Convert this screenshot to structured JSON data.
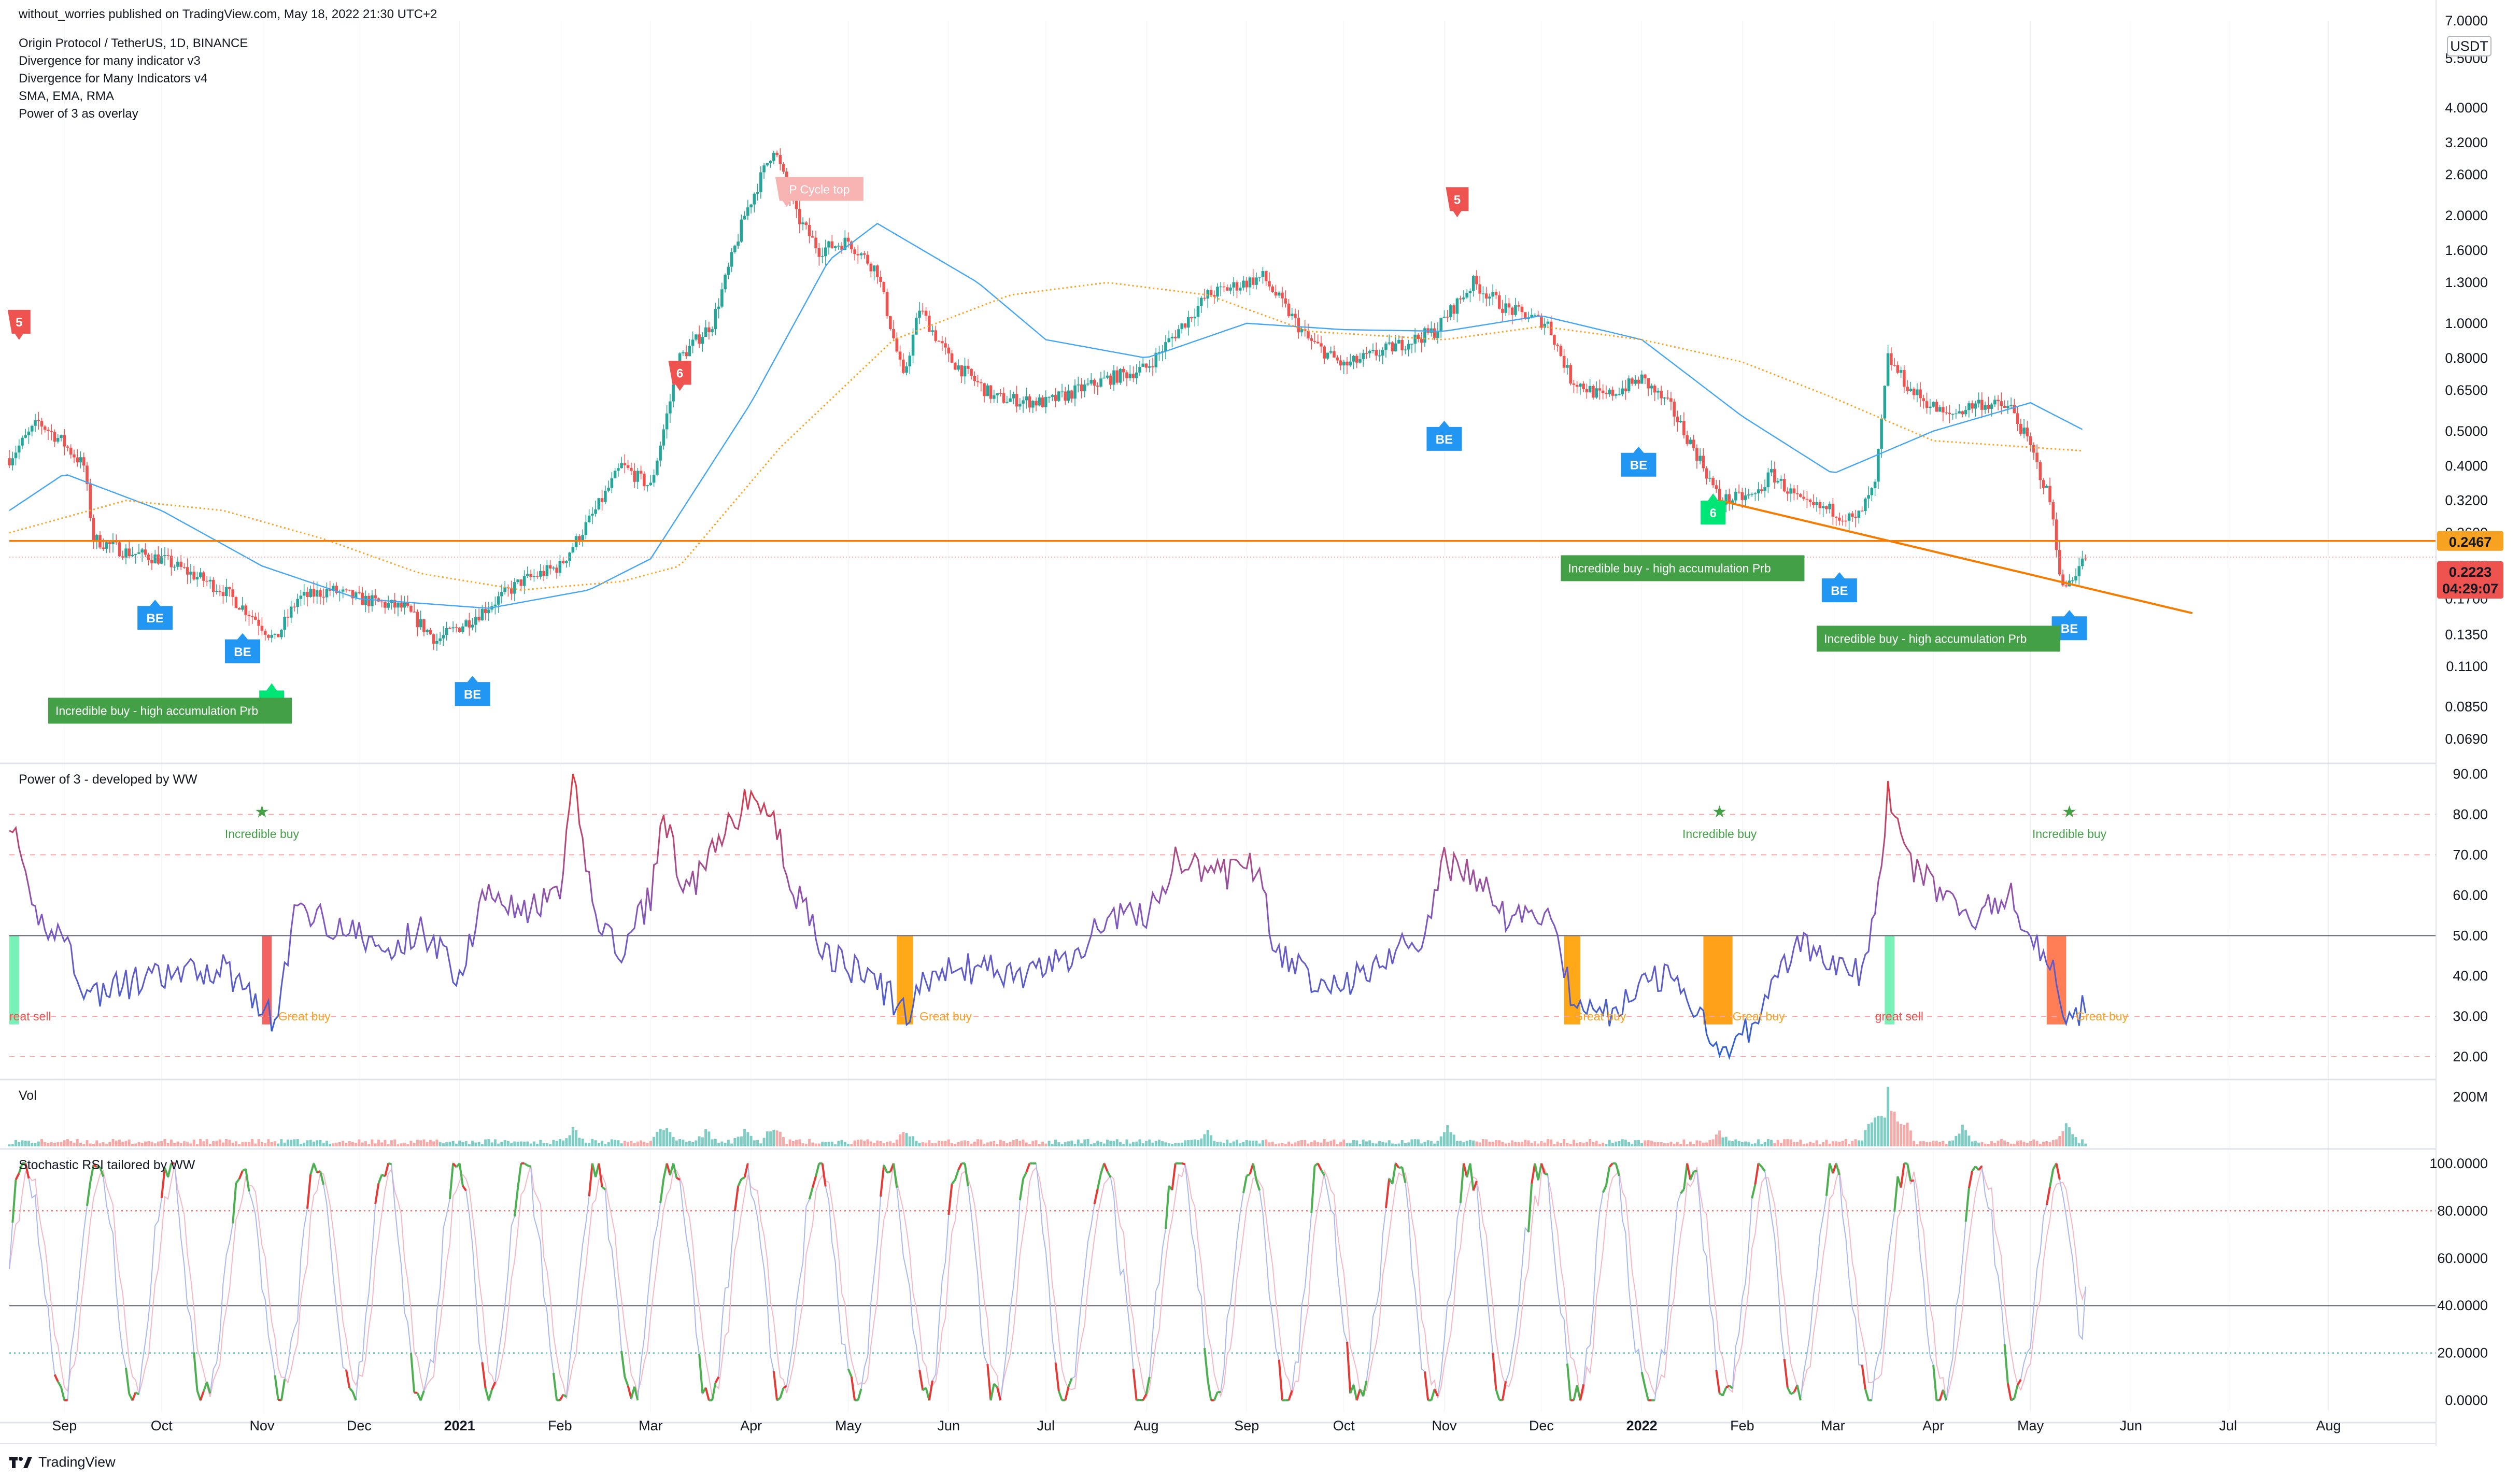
{
  "header": {
    "publisher": "without_worries published on TradingView.com, May 18, 2022 21:30 UTC+2",
    "symbol": "Origin Protocol / TetherUS, 1D, BINANCE",
    "indicators": [
      "Divergence for many indicator v3",
      "Divergence for Many Indicators v4",
      "SMA, EMA, RMA",
      "Power of 3 as overlay"
    ]
  },
  "footer": {
    "brand": "TradingView"
  },
  "colors": {
    "up": "#26a69a",
    "down": "#ef5350",
    "sma": "#42a5f5",
    "ema": "#f7a221",
    "support": "#f57c00",
    "signal_green": "#43a047",
    "be_blue": "#2196f3",
    "sell_red": "#ef5350"
  },
  "chart_data": [
    {
      "pane": "price",
      "type": "candlestick",
      "scale": "log",
      "quote_unit": "USDT",
      "ylim": [
        0.06,
        7.0
      ],
      "y_ticks": [
        "7.0000",
        "5.5000",
        "4.0000",
        "3.2000",
        "2.6000",
        "2.0000",
        "1.6000",
        "1.3000",
        "1.0000",
        "0.8000",
        "0.6500",
        "0.5000",
        "0.4000",
        "0.3200",
        "0.2600",
        "0.2100",
        "0.1700",
        "0.1350",
        "0.1100",
        "0.0850",
        "0.0690"
      ],
      "x_labels": [
        "Sep",
        "Oct",
        "Nov",
        "Dec",
        "2021",
        "Feb",
        "Mar",
        "Apr",
        "May",
        "Jun",
        "Jul",
        "Aug",
        "Sep",
        "Oct",
        "Nov",
        "Dec",
        "2022",
        "Feb",
        "Mar",
        "Apr",
        "May",
        "Jun",
        "Jul",
        "Aug"
      ],
      "x_range": [
        "2020-08-15",
        "2022-08-31"
      ],
      "close_anchors": [
        [
          "2020-08-15",
          0.42
        ],
        [
          "2020-08-24",
          0.53
        ],
        [
          "2020-08-31",
          0.47
        ],
        [
          "2020-09-07",
          0.4
        ],
        [
          "2020-09-10",
          0.25
        ],
        [
          "2020-09-20",
          0.23
        ],
        [
          "2020-10-01",
          0.22
        ],
        [
          "2020-10-10",
          0.2
        ],
        [
          "2020-10-20",
          0.18
        ],
        [
          "2020-10-30",
          0.15
        ],
        [
          "2020-11-05",
          0.13
        ],
        [
          "2020-11-12",
          0.17
        ],
        [
          "2020-11-22",
          0.18
        ],
        [
          "2020-12-01",
          0.17
        ],
        [
          "2020-12-15",
          0.16
        ],
        [
          "2020-12-25",
          0.13
        ],
        [
          "2021-01-05",
          0.15
        ],
        [
          "2021-01-20",
          0.19
        ],
        [
          "2021-02-01",
          0.21
        ],
        [
          "2021-02-12",
          0.3
        ],
        [
          "2021-02-20",
          0.4
        ],
        [
          "2021-03-01",
          0.35
        ],
        [
          "2021-03-10",
          0.8
        ],
        [
          "2021-03-20",
          1.0
        ],
        [
          "2021-03-30",
          2.0
        ],
        [
          "2021-04-08",
          3.1
        ],
        [
          "2021-04-15",
          2.0
        ],
        [
          "2021-04-22",
          1.6
        ],
        [
          "2021-05-01",
          1.7
        ],
        [
          "2021-05-10",
          1.4
        ],
        [
          "2021-05-18",
          0.7
        ],
        [
          "2021-05-23",
          1.1
        ],
        [
          "2021-06-01",
          0.8
        ],
        [
          "2021-06-15",
          0.62
        ],
        [
          "2021-07-01",
          0.6
        ],
        [
          "2021-07-20",
          0.7
        ],
        [
          "2021-08-01",
          0.75
        ],
        [
          "2021-08-20",
          1.2
        ],
        [
          "2021-09-06",
          1.35
        ],
        [
          "2021-09-20",
          0.9
        ],
        [
          "2021-10-01",
          0.76
        ],
        [
          "2021-10-15",
          0.85
        ],
        [
          "2021-10-29",
          0.95
        ],
        [
          "2021-11-10",
          1.3
        ],
        [
          "2021-11-20",
          1.1
        ],
        [
          "2021-12-03",
          1.0
        ],
        [
          "2021-12-10",
          0.7
        ],
        [
          "2021-12-20",
          0.62
        ],
        [
          "2022-01-01",
          0.7
        ],
        [
          "2022-01-10",
          0.58
        ],
        [
          "2022-01-20",
          0.4
        ],
        [
          "2022-01-25",
          0.32
        ],
        [
          "2022-02-05",
          0.33
        ],
        [
          "2022-02-10",
          0.38
        ],
        [
          "2022-02-20",
          0.31
        ],
        [
          "2022-03-01",
          0.3
        ],
        [
          "2022-03-08",
          0.28
        ],
        [
          "2022-03-14",
          0.35
        ],
        [
          "2022-03-18",
          0.8
        ],
        [
          "2022-03-25",
          0.65
        ],
        [
          "2022-04-05",
          0.55
        ],
        [
          "2022-04-15",
          0.6
        ],
        [
          "2022-04-25",
          0.58
        ],
        [
          "2022-05-01",
          0.45
        ],
        [
          "2022-05-07",
          0.32
        ],
        [
          "2022-05-11",
          0.18
        ],
        [
          "2022-05-18",
          0.2223
        ]
      ],
      "sma_anchors": [
        [
          "2020-08-15",
          0.3
        ],
        [
          "2020-09-01",
          0.38
        ],
        [
          "2020-10-01",
          0.3
        ],
        [
          "2020-11-01",
          0.21
        ],
        [
          "2020-12-01",
          0.17
        ],
        [
          "2021-01-10",
          0.16
        ],
        [
          "2021-02-10",
          0.18
        ],
        [
          "2021-03-01",
          0.22
        ],
        [
          "2021-04-01",
          0.6
        ],
        [
          "2021-04-25",
          1.5
        ],
        [
          "2021-05-10",
          1.9
        ],
        [
          "2021-06-10",
          1.3
        ],
        [
          "2021-07-01",
          0.9
        ],
        [
          "2021-08-01",
          0.8
        ],
        [
          "2021-09-01",
          1.0
        ],
        [
          "2021-10-01",
          0.96
        ],
        [
          "2021-11-01",
          0.95
        ],
        [
          "2021-12-01",
          1.05
        ],
        [
          "2022-01-01",
          0.9
        ],
        [
          "2022-02-01",
          0.55
        ],
        [
          "2022-03-01",
          0.38
        ],
        [
          "2022-04-01",
          0.5
        ],
        [
          "2022-05-01",
          0.6
        ],
        [
          "2022-05-18",
          0.5
        ]
      ],
      "ema_anchors": [
        [
          "2020-08-15",
          0.26
        ],
        [
          "2020-09-20",
          0.32
        ],
        [
          "2020-10-20",
          0.3
        ],
        [
          "2020-11-20",
          0.25
        ],
        [
          "2020-12-20",
          0.2
        ],
        [
          "2021-01-20",
          0.18
        ],
        [
          "2021-02-20",
          0.19
        ],
        [
          "2021-03-10",
          0.21
        ],
        [
          "2021-04-10",
          0.45
        ],
        [
          "2021-05-15",
          0.9
        ],
        [
          "2021-06-20",
          1.2
        ],
        [
          "2021-07-20",
          1.3
        ],
        [
          "2021-08-20",
          1.2
        ],
        [
          "2021-09-20",
          0.95
        ],
        [
          "2021-11-01",
          0.9
        ],
        [
          "2021-12-01",
          0.98
        ],
        [
          "2022-01-01",
          0.9
        ],
        [
          "2022-02-01",
          0.78
        ],
        [
          "2022-03-01",
          0.62
        ],
        [
          "2022-04-01",
          0.47
        ],
        [
          "2022-05-18",
          0.44
        ]
      ],
      "current_price": {
        "label": "0.2223",
        "countdown": "04:29:07",
        "value": 0.2223
      },
      "support_level": {
        "label": "0.2467",
        "value": 0.2467
      },
      "trendline": {
        "from": [
          "2022-01-25",
          0.32
        ],
        "to": [
          "2022-06-20",
          0.155
        ]
      },
      "annotations": [
        {
          "type": "sell",
          "text": "5",
          "date": "2020-08-18",
          "price": 1.0
        },
        {
          "type": "sell",
          "text": "6",
          "date": "2021-03-10",
          "price": 0.72
        },
        {
          "type": "sell",
          "text": "5",
          "date": "2021-11-05",
          "price": 2.2
        },
        {
          "type": "sell_pale",
          "text": "P Cycle top",
          "date": "2021-04-12",
          "price": 2.35
        },
        {
          "type": "be",
          "text": "BE",
          "date": "2020-09-29",
          "price": 0.155
        },
        {
          "type": "be",
          "text": "BE",
          "date": "2020-10-26",
          "price": 0.125
        },
        {
          "type": "be",
          "text": "BE",
          "date": "2021-01-05",
          "price": 0.095
        },
        {
          "type": "be",
          "text": "BE",
          "date": "2021-11-01",
          "price": 0.49
        },
        {
          "type": "be",
          "text": "BE",
          "date": "2021-12-31",
          "price": 0.415
        },
        {
          "type": "be",
          "text": "BE",
          "date": "2022-03-03",
          "price": 0.185
        },
        {
          "type": "be",
          "text": "BE",
          "date": "2022-05-13",
          "price": 0.145
        },
        {
          "type": "buy6",
          "text": "6",
          "date": "2020-11-04",
          "price": 0.09
        },
        {
          "type": "buy6",
          "text": "6",
          "date": "2022-01-23",
          "price": 0.305
        },
        {
          "type": "incredible",
          "text": "Incredible buy - high accumulation Prb",
          "date": "2020-08-27",
          "price": 0.09
        },
        {
          "type": "incredible",
          "text": "Incredible buy - high accumulation Prb",
          "date": "2021-12-07",
          "price": 0.225
        },
        {
          "type": "incredible",
          "text": "Incredible buy - high accumulation Prb",
          "date": "2022-02-24",
          "price": 0.143
        }
      ]
    },
    {
      "pane": "power_of_3",
      "type": "line",
      "title": "Power of 3 - developed by WW",
      "ylim": [
        15,
        92
      ],
      "y_ticks": [
        "90.00",
        "80.00",
        "70.00",
        "60.00",
        "50.00",
        "40.00",
        "30.00",
        "20.00"
      ],
      "midline": 50,
      "anchors": [
        [
          "2020-08-15",
          80
        ],
        [
          "2020-08-22",
          55
        ],
        [
          "2020-09-01",
          50
        ],
        [
          "2020-09-08",
          35
        ],
        [
          "2020-09-20",
          38
        ],
        [
          "2020-10-05",
          40
        ],
        [
          "2020-10-20",
          42
        ],
        [
          "2020-10-30",
          35
        ],
        [
          "2020-11-05",
          28
        ],
        [
          "2020-11-12",
          58
        ],
        [
          "2020-11-20",
          54
        ],
        [
          "2020-12-01",
          50
        ],
        [
          "2020-12-10",
          45
        ],
        [
          "2020-12-20",
          52
        ],
        [
          "2021-01-01",
          40
        ],
        [
          "2021-01-10",
          64
        ],
        [
          "2021-01-20",
          55
        ],
        [
          "2021-02-01",
          60
        ],
        [
          "2021-02-05",
          88
        ],
        [
          "2021-02-12",
          55
        ],
        [
          "2021-02-20",
          45
        ],
        [
          "2021-03-01",
          60
        ],
        [
          "2021-03-05",
          80
        ],
        [
          "2021-03-12",
          60
        ],
        [
          "2021-03-20",
          70
        ],
        [
          "2021-04-01",
          85
        ],
        [
          "2021-04-08",
          78
        ],
        [
          "2021-04-15",
          60
        ],
        [
          "2021-04-25",
          45
        ],
        [
          "2021-05-10",
          38
        ],
        [
          "2021-05-20",
          30
        ],
        [
          "2021-05-25",
          40
        ],
        [
          "2021-06-10",
          42
        ],
        [
          "2021-06-25",
          40
        ],
        [
          "2021-07-10",
          45
        ],
        [
          "2021-07-20",
          55
        ],
        [
          "2021-08-01",
          55
        ],
        [
          "2021-08-10",
          68
        ],
        [
          "2021-08-25",
          65
        ],
        [
          "2021-09-05",
          68
        ],
        [
          "2021-09-10",
          45
        ],
        [
          "2021-09-20",
          40
        ],
        [
          "2021-10-01",
          38
        ],
        [
          "2021-10-15",
          45
        ],
        [
          "2021-10-25",
          50
        ],
        [
          "2021-11-01",
          68
        ],
        [
          "2021-11-10",
          65
        ],
        [
          "2021-11-20",
          55
        ],
        [
          "2021-12-05",
          55
        ],
        [
          "2021-12-10",
          35
        ],
        [
          "2021-12-20",
          30
        ],
        [
          "2022-01-01",
          38
        ],
        [
          "2022-01-10",
          40
        ],
        [
          "2022-01-20",
          30
        ],
        [
          "2022-01-25",
          22
        ],
        [
          "2022-02-05",
          28
        ],
        [
          "2022-02-10",
          40
        ],
        [
          "2022-02-20",
          48
        ],
        [
          "2022-03-01",
          42
        ],
        [
          "2022-03-10",
          40
        ],
        [
          "2022-03-14",
          55
        ],
        [
          "2022-03-18",
          85
        ],
        [
          "2022-03-25",
          68
        ],
        [
          "2022-04-05",
          58
        ],
        [
          "2022-04-15",
          55
        ],
        [
          "2022-04-25",
          60
        ],
        [
          "2022-05-01",
          50
        ],
        [
          "2022-05-08",
          40
        ],
        [
          "2022-05-12",
          27
        ],
        [
          "2022-05-18",
          33
        ]
      ],
      "ref_lines": [
        80,
        70,
        30,
        20
      ],
      "histogram": [
        {
          "from": "2020-08-15",
          "to": "2020-08-18",
          "color": "#69f0ae"
        },
        {
          "from": "2020-11-01",
          "to": "2020-11-04",
          "color": "#ef5350"
        },
        {
          "from": "2021-05-16",
          "to": "2021-05-21",
          "color": "#ffa000"
        },
        {
          "from": "2021-12-08",
          "to": "2021-12-13",
          "color": "#ffa000"
        },
        {
          "from": "2022-01-20",
          "to": "2022-01-29",
          "color": "#ff9800"
        },
        {
          "from": "2022-03-17",
          "to": "2022-03-20",
          "color": "#69f0ae"
        },
        {
          "from": "2022-05-06",
          "to": "2022-05-12",
          "color": "#ff7043"
        }
      ],
      "labels": [
        {
          "text": "reat sell",
          "date": "2020-08-15",
          "value": 30,
          "color": "#ef5350"
        },
        {
          "text": "Great buy",
          "date": "2020-11-06",
          "value": 30,
          "color": "#f7a221"
        },
        {
          "text": "Great buy",
          "date": "2021-05-23",
          "value": 30,
          "color": "#f7a221"
        },
        {
          "text": "Great buy",
          "date": "2021-12-11",
          "value": 30,
          "color": "#f7a221"
        },
        {
          "text": "Great buy",
          "date": "2022-01-29",
          "value": 30,
          "color": "#f7a221"
        },
        {
          "text": "great sell",
          "date": "2022-03-14",
          "value": 30,
          "color": "#ef5350"
        },
        {
          "text": "Great buy",
          "date": "2022-05-15",
          "value": 30,
          "color": "#f7a221"
        },
        {
          "text": "Incredible buy",
          "date": "2020-11-01",
          "value": 77,
          "color": "#43a047",
          "star": true
        },
        {
          "text": "Incredible buy",
          "date": "2022-01-25",
          "value": 77,
          "color": "#43a047",
          "star": true
        },
        {
          "text": "Incredible buy",
          "date": "2022-05-13",
          "value": 77,
          "color": "#43a047",
          "star": true
        }
      ]
    },
    {
      "pane": "volume",
      "type": "bar",
      "title": "Vol",
      "y_ticks": [
        "200M"
      ],
      "ylim": [
        0,
        260
      ],
      "spikes": [
        [
          "2021-02-05",
          90
        ],
        [
          "2021-03-05",
          90
        ],
        [
          "2021-03-18",
          70
        ],
        [
          "2021-03-30",
          80
        ],
        [
          "2021-04-08",
          110
        ],
        [
          "2021-05-19",
          80
        ],
        [
          "2021-08-20",
          60
        ],
        [
          "2021-11-02",
          80
        ],
        [
          "2022-01-25",
          60
        ],
        [
          "2022-03-14",
          160
        ],
        [
          "2022-03-18",
          230
        ],
        [
          "2022-03-22",
          150
        ],
        [
          "2022-04-10",
          80
        ],
        [
          "2022-05-12",
          90
        ]
      ]
    },
    {
      "pane": "stoch_rsi",
      "type": "line",
      "title": "Stochastic RSI tailored by WW",
      "ylim": [
        -5,
        105
      ],
      "y_ticks": [
        "100.0000",
        "80.0000",
        "60.0000",
        "40.0000",
        "20.0000",
        "0.0000"
      ],
      "midline": 40,
      "upper_band": 80,
      "lower_band": 20,
      "last_value": 48
    }
  ]
}
